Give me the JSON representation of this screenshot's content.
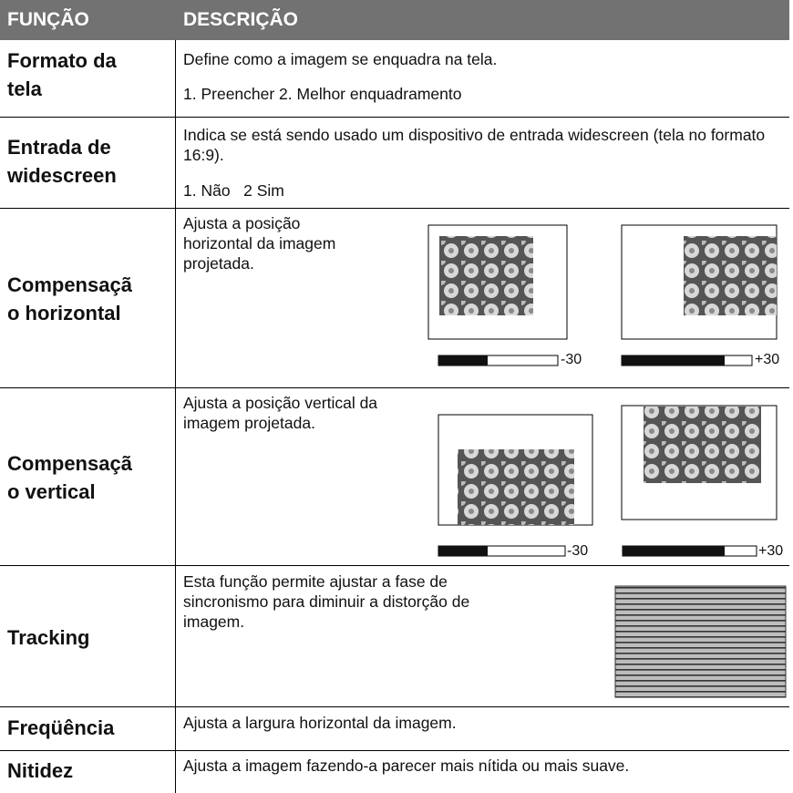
{
  "table": {
    "header": [
      "FUNÇÃO",
      "DESCRIÇÃO"
    ],
    "rows": [
      {
        "function": [
          "Formato da",
          "tela"
        ],
        "description": [
          "Define como a imagem se enquadra na tela.",
          "1. Preencher 2. Melhor enquadramento"
        ]
      },
      {
        "function": [
          "Entrada de",
          "widescreen"
        ],
        "description": [
          "Indica se está sendo usado um dispositivo de entrada widescreen (tela no formato 16:9).",
          "1. Não   2 Sim"
        ]
      },
      {
        "function": [
          "Compensaçã",
          "o horizontal"
        ],
        "description": [
          "Ajusta a posição horizontal da imagem projetada."
        ],
        "slider_labels": [
          "-30",
          "+30"
        ]
      },
      {
        "function": [
          "Compensaçã",
          "o vertical"
        ],
        "description": [
          "Ajusta a posição vertical da imagem projetada."
        ],
        "slider_labels": [
          "-30",
          "+30"
        ]
      },
      {
        "function": [
          "Tracking"
        ],
        "description": [
          "Esta função permite ajustar a fase de sincronismo para diminuir a distorção de imagem."
        ]
      },
      {
        "function": [
          "Freqüência"
        ],
        "description": [
          "Ajusta a largura horizontal da imagem."
        ]
      },
      {
        "function": [
          "Nitidez"
        ],
        "description": [
          "Ajusta a imagem fazendo-a parecer mais nítida ou mais suave."
        ]
      }
    ]
  }
}
